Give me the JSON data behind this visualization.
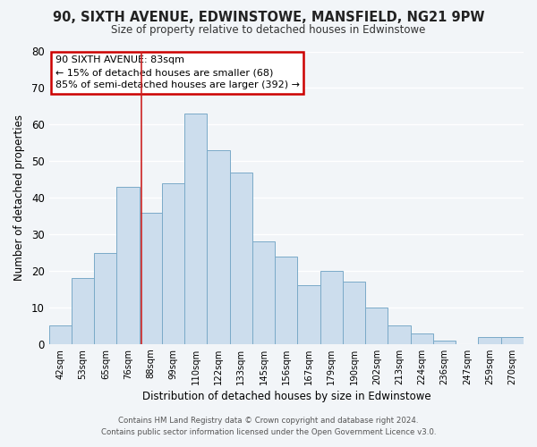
{
  "title": "90, SIXTH AVENUE, EDWINSTOWE, MANSFIELD, NG21 9PW",
  "subtitle": "Size of property relative to detached houses in Edwinstowe",
  "xlabel": "Distribution of detached houses by size in Edwinstowe",
  "ylabel": "Number of detached properties",
  "bar_color": "#ccdded",
  "bar_edge_color": "#7aaac8",
  "categories": [
    "42sqm",
    "53sqm",
    "65sqm",
    "76sqm",
    "88sqm",
    "99sqm",
    "110sqm",
    "122sqm",
    "133sqm",
    "145sqm",
    "156sqm",
    "167sqm",
    "179sqm",
    "190sqm",
    "202sqm",
    "213sqm",
    "224sqm",
    "236sqm",
    "247sqm",
    "259sqm",
    "270sqm"
  ],
  "values": [
    5,
    18,
    25,
    43,
    36,
    44,
    63,
    53,
    47,
    28,
    24,
    16,
    20,
    17,
    10,
    5,
    3,
    1,
    0,
    2,
    2
  ],
  "ylim": [
    0,
    80
  ],
  "yticks": [
    0,
    10,
    20,
    30,
    40,
    50,
    60,
    70,
    80
  ],
  "annotation_title": "90 SIXTH AVENUE: 83sqm",
  "annotation_line1": "← 15% of detached houses are smaller (68)",
  "annotation_line2": "85% of semi-detached houses are larger (392) →",
  "annotation_box_color": "#ffffff",
  "annotation_box_edge": "#cc0000",
  "footer1": "Contains HM Land Registry data © Crown copyright and database right 2024.",
  "footer2": "Contains public sector information licensed under the Open Government Licence v3.0.",
  "background_color": "#f2f5f8",
  "grid_color": "#ffffff",
  "vline_color": "#cc2222"
}
